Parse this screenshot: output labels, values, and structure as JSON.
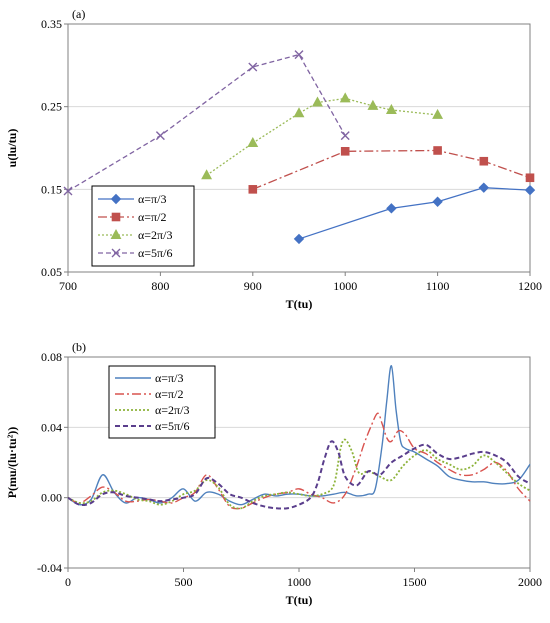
{
  "chart_data": [
    {
      "panel_label": "(a)",
      "type": "line",
      "xlabel": "T(tu)",
      "ylabel": "u(lu/tu)",
      "xlim": [
        700,
        1200
      ],
      "ylim": [
        0.05,
        0.35
      ],
      "xticks": [
        "700",
        "800",
        "900",
        "1000",
        "1100",
        "1200"
      ],
      "yticks": [
        "0.05",
        "0.15",
        "0.25",
        "0.35"
      ],
      "grid": "horizontal",
      "legend_position": "bottom-left",
      "series": [
        {
          "name": "α=π/3",
          "color": "#4472C4",
          "dash": "solid",
          "marker": "diamond",
          "x": [
            950,
            1050,
            1100,
            1150,
            1200
          ],
          "y": [
            0.09,
            0.127,
            0.135,
            0.152,
            0.149
          ]
        },
        {
          "name": "α=π/2",
          "color": "#C0504D",
          "dash": "dashdot",
          "marker": "square",
          "x": [
            900,
            1000,
            1100,
            1150,
            1200
          ],
          "y": [
            0.15,
            0.196,
            0.197,
            0.184,
            0.164
          ]
        },
        {
          "name": "α=2π/3",
          "color": "#9BBB59",
          "dash": "dotted",
          "marker": "triangle",
          "x": [
            850,
            900,
            950,
            970,
            1000,
            1030,
            1050,
            1100
          ],
          "y": [
            0.167,
            0.206,
            0.242,
            0.255,
            0.26,
            0.251,
            0.246,
            0.24
          ]
        },
        {
          "name": "α=5π/6",
          "color": "#8064A2",
          "dash": "dashed",
          "marker": "x",
          "x": [
            700,
            800,
            900,
            950,
            1000
          ],
          "y": [
            0.148,
            0.215,
            0.298,
            0.313,
            0.215
          ]
        }
      ]
    },
    {
      "panel_label": "(b)",
      "type": "line",
      "xlabel": "T(tu)",
      "ylabel": "P(mu/(lu·tu²))",
      "xlim": [
        0,
        2000
      ],
      "ylim": [
        -0.04,
        0.08
      ],
      "xticks": [
        "0",
        "500",
        "1000",
        "1500",
        "2000"
      ],
      "yticks": [
        "-0.04",
        "0.00",
        "0.04",
        "0.08"
      ],
      "grid": "horizontal",
      "legend_position": "top-left",
      "series": [
        {
          "name": "α=π/3",
          "color": "#4F81BD",
          "dash": "solid",
          "width": 1.4,
          "x": [
            0,
            50,
            100,
            150,
            200,
            250,
            300,
            350,
            400,
            450,
            500,
            550,
            600,
            650,
            700,
            750,
            800,
            850,
            900,
            950,
            1000,
            1050,
            1100,
            1150,
            1200,
            1250,
            1300,
            1330,
            1360,
            1380,
            1400,
            1420,
            1440,
            1460,
            1500,
            1550,
            1600,
            1650,
            1700,
            1750,
            1800,
            1850,
            1900,
            1950,
            2000
          ],
          "y": [
            0.0,
            -0.004,
            -0.001,
            0.013,
            0.003,
            -0.003,
            0.0,
            -0.001,
            -0.003,
            0.0,
            0.005,
            -0.002,
            0.003,
            0.002,
            -0.002,
            -0.004,
            -0.001,
            0.002,
            0.001,
            0.002,
            0.002,
            0.001,
            0.001,
            0.002,
            0.003,
            0.001,
            0.002,
            0.005,
            0.03,
            0.055,
            0.075,
            0.05,
            0.032,
            0.028,
            0.026,
            0.022,
            0.018,
            0.012,
            0.01,
            0.009,
            0.009,
            0.008,
            0.008,
            0.01,
            0.019
          ]
        },
        {
          "name": "α=π/2",
          "color": "#D9534F",
          "dash": "dashdot",
          "width": 1.4,
          "x": [
            0,
            50,
            100,
            150,
            200,
            250,
            300,
            350,
            400,
            450,
            500,
            550,
            600,
            650,
            700,
            750,
            800,
            850,
            900,
            950,
            1000,
            1050,
            1100,
            1150,
            1200,
            1250,
            1280,
            1310,
            1340,
            1360,
            1380,
            1400,
            1430,
            1460,
            1500,
            1550,
            1600,
            1650,
            1700,
            1750,
            1800,
            1850,
            1900,
            1950,
            2000
          ],
          "y": [
            0.0,
            -0.003,
            0.001,
            0.006,
            0.003,
            -0.002,
            -0.002,
            -0.001,
            -0.002,
            -0.003,
            0.0,
            0.003,
            0.013,
            0.005,
            -0.005,
            -0.006,
            -0.003,
            0.0,
            0.002,
            0.003,
            0.005,
            0.002,
            0.0,
            -0.003,
            0.002,
            0.018,
            0.03,
            0.04,
            0.048,
            0.042,
            0.034,
            0.032,
            0.038,
            0.036,
            0.028,
            0.025,
            0.02,
            0.016,
            0.013,
            0.013,
            0.016,
            0.02,
            0.015,
            0.005,
            -0.002
          ]
        },
        {
          "name": "α=2π/3",
          "color": "#8DB33A",
          "dash": "dotted",
          "width": 1.8,
          "x": [
            0,
            50,
            100,
            150,
            200,
            250,
            300,
            350,
            400,
            450,
            500,
            550,
            600,
            650,
            700,
            750,
            800,
            850,
            900,
            950,
            1000,
            1050,
            1100,
            1150,
            1180,
            1200,
            1230,
            1260,
            1300,
            1350,
            1400,
            1450,
            1500,
            1550,
            1600,
            1650,
            1700,
            1750,
            1800,
            1850,
            1900,
            1950,
            2000
          ],
          "y": [
            0.0,
            -0.003,
            -0.002,
            0.003,
            0.004,
            0.002,
            -0.001,
            -0.002,
            -0.004,
            -0.002,
            0.002,
            0.004,
            0.01,
            0.006,
            -0.004,
            -0.006,
            -0.002,
            0.001,
            0.002,
            0.003,
            0.002,
            0.001,
            0.002,
            0.007,
            0.028,
            0.033,
            0.026,
            0.014,
            0.015,
            0.012,
            0.01,
            0.018,
            0.024,
            0.027,
            0.022,
            0.019,
            0.016,
            0.018,
            0.024,
            0.02,
            0.014,
            0.008,
            0.004
          ]
        },
        {
          "name": "α=5π/6",
          "color": "#5A3E8C",
          "dash": "dashed",
          "width": 2.0,
          "x": [
            0,
            50,
            100,
            150,
            200,
            250,
            300,
            350,
            400,
            450,
            500,
            550,
            600,
            650,
            700,
            750,
            800,
            850,
            900,
            950,
            1000,
            1050,
            1080,
            1110,
            1140,
            1170,
            1200,
            1250,
            1300,
            1350,
            1400,
            1450,
            1500,
            1550,
            1600,
            1650,
            1700,
            1750,
            1800,
            1850,
            1900,
            1950,
            2000
          ],
          "y": [
            0.0,
            -0.004,
            -0.003,
            0.002,
            0.003,
            0.001,
            0.0,
            -0.001,
            -0.002,
            -0.001,
            0.0,
            0.002,
            0.011,
            0.008,
            0.002,
            0.0,
            -0.003,
            -0.005,
            -0.006,
            -0.006,
            -0.004,
            0.0,
            0.008,
            0.022,
            0.032,
            0.026,
            0.012,
            0.007,
            0.015,
            0.013,
            0.02,
            0.024,
            0.028,
            0.03,
            0.025,
            0.022,
            0.023,
            0.025,
            0.026,
            0.024,
            0.02,
            0.012,
            0.008
          ]
        }
      ]
    }
  ]
}
